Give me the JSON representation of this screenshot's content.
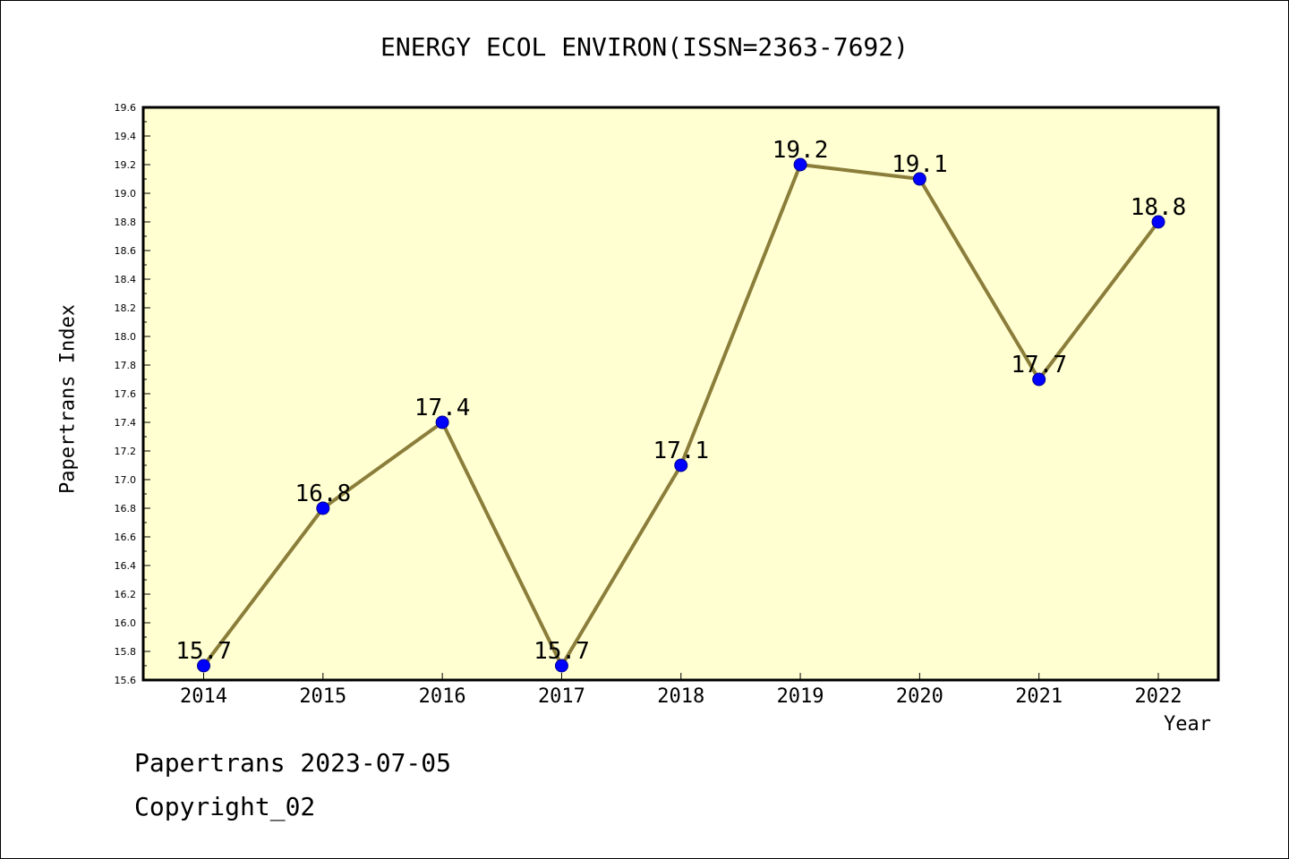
{
  "chart_data": {
    "type": "line",
    "title": "ENERGY ECOL ENVIRON(ISSN=2363-7692)",
    "xlabel": "Year",
    "ylabel": "Papertrans Index",
    "categories": [
      "2014",
      "2015",
      "2016",
      "2017",
      "2018",
      "2019",
      "2020",
      "2021",
      "2022"
    ],
    "values": [
      15.7,
      16.8,
      17.4,
      15.7,
      17.1,
      19.2,
      19.1,
      17.7,
      18.8
    ],
    "data_labels": [
      "15.7",
      "16.8",
      "17.4",
      "15.7",
      "17.1",
      "19.2",
      "19.1",
      "17.7",
      "18.8"
    ],
    "ylim": [
      15.6,
      19.6
    ],
    "yticks": [
      "15.6",
      "15.8",
      "16.0",
      "16.2",
      "16.4",
      "16.6",
      "16.8",
      "17.0",
      "17.2",
      "17.4",
      "17.6",
      "17.8",
      "18.0",
      "18.2",
      "18.4",
      "18.6",
      "18.8",
      "19.0",
      "19.2",
      "19.4",
      "19.6"
    ],
    "grid": false,
    "legend": "none",
    "colors": {
      "plot_background": "#ffffd1",
      "line": "#8b7d3a",
      "marker": "#0000ff"
    }
  },
  "footer": {
    "line1": "Papertrans 2023-07-05",
    "line2": "Copyright_02"
  }
}
